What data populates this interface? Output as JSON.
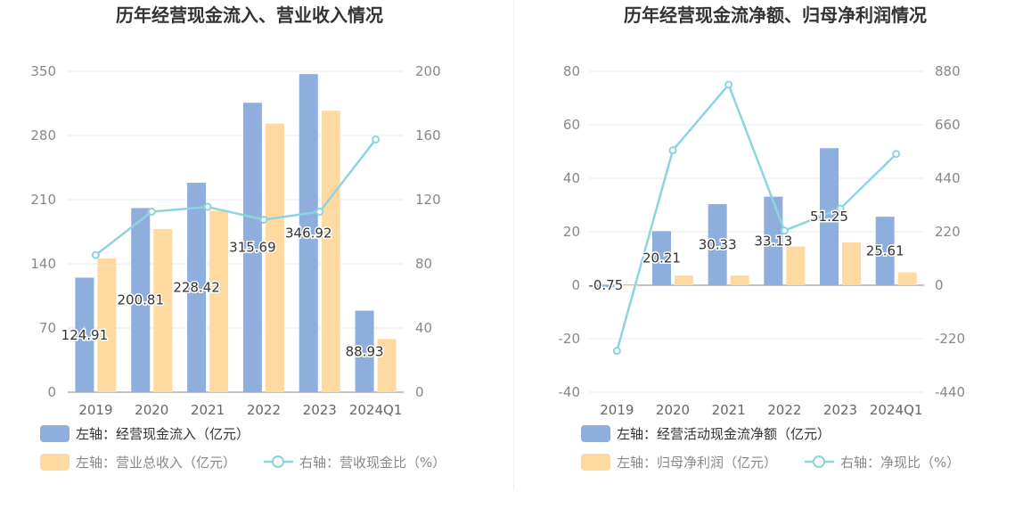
{
  "chart_data": [
    {
      "type": "bar",
      "title": "历年经营现金流入、营业收入情况",
      "categories": [
        "2019",
        "2020",
        "2021",
        "2022",
        "2023",
        "2024Q1"
      ],
      "left_axis": {
        "ticks": [
          "0",
          "70",
          "140",
          "210",
          "280",
          "350"
        ],
        "ylim": [
          0,
          350
        ]
      },
      "right_axis": {
        "ticks": [
          "0",
          "40",
          "80",
          "120",
          "160",
          "200"
        ],
        "ylim": [
          0,
          200
        ]
      },
      "grid": true,
      "legend_placement": "bottom-left",
      "series": [
        {
          "name": "左轴：经营现金流入（亿元）",
          "axis": "left",
          "kind": "bar",
          "color": "#8eaedd",
          "values": [
            124.91,
            200.81,
            228.42,
            315.69,
            346.92,
            88.93
          ],
          "labels": [
            "124.91",
            "200.81",
            "228.42",
            "315.69",
            "346.92",
            "88.93"
          ]
        },
        {
          "name": "左轴：营业总收入（亿元）",
          "axis": "left",
          "kind": "bar",
          "color": "#fedaa0",
          "values": [
            146,
            178,
            198,
            293,
            307,
            58
          ]
        },
        {
          "name": "右轴：营收现金比（%）",
          "axis": "right",
          "kind": "line",
          "color": "#8dd4dd",
          "values": [
            85.5,
            112.5,
            115.5,
            107.5,
            112.5,
            157.5
          ]
        }
      ]
    },
    {
      "type": "bar",
      "title": "历年经营现金流净额、归母净利润情况",
      "categories": [
        "2019",
        "2020",
        "2021",
        "2022",
        "2023",
        "2024Q1"
      ],
      "left_axis": {
        "ticks": [
          "-40",
          "-20",
          "0",
          "20",
          "40",
          "60",
          "80"
        ],
        "ylim": [
          -40,
          80
        ]
      },
      "right_axis": {
        "ticks": [
          "-440",
          "-220",
          "0",
          "220",
          "440",
          "660",
          "880"
        ],
        "ylim": [
          -440,
          880
        ]
      },
      "grid": true,
      "legend_placement": "bottom-left",
      "series": [
        {
          "name": "左轴：经营活动现金流净额（亿元）",
          "axis": "left",
          "kind": "bar",
          "color": "#8eaedd",
          "values": [
            -0.75,
            20.21,
            30.33,
            33.13,
            51.25,
            25.61
          ],
          "labels": [
            "-0.75",
            "20.21",
            "30.33",
            "33.13",
            "51.25",
            "25.61"
          ]
        },
        {
          "name": "左轴：归母净利润（亿元）",
          "axis": "left",
          "kind": "bar",
          "color": "#fedaa0",
          "values": [
            0,
            3.6,
            3.6,
            14.5,
            16.0,
            4.8
          ]
        },
        {
          "name": "右轴：净现比（%）",
          "axis": "right",
          "kind": "line",
          "color": "#8dd4dd",
          "values": [
            -270,
            555,
            825,
            225,
            315,
            540
          ]
        }
      ]
    }
  ]
}
